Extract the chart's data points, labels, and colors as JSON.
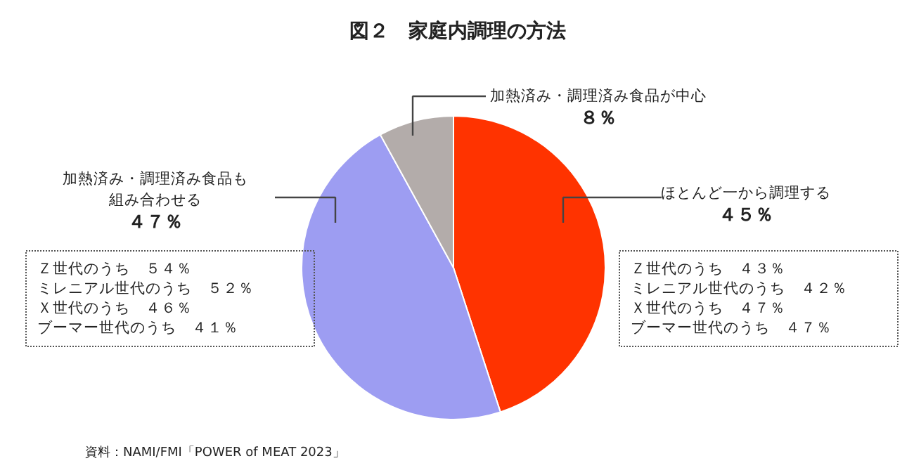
{
  "chart_data": {
    "type": "pie",
    "title": "図２　家庭内調理の方法",
    "categories": [
      "ほとんど一から調理する",
      "加熱済み・調理済み食品も組み合わせる",
      "加熱済み・調理済み食品が中心"
    ],
    "values": [
      45,
      47,
      8
    ],
    "value_labels": [
      "４５％",
      "４７％",
      "８％"
    ],
    "colors": [
      "#ff3300",
      "#9d9df2",
      "#b3acaa"
    ],
    "annotations": [
      "Ｚ世代のうち　５４％",
      "ミレニアル世代のうち　５２％",
      "Ｘ世代のうち　４６％",
      "ブーマー世代のうち　４１％",
      "Ｚ世代のうち　４３％",
      "ミレニアル世代のうち　４２％",
      "Ｘ世代のうち　４７％",
      "ブーマー世代のうち　４７％",
      "資料：NAMI/FMI「POWER of MEAT 2023」"
    ]
  }
}
